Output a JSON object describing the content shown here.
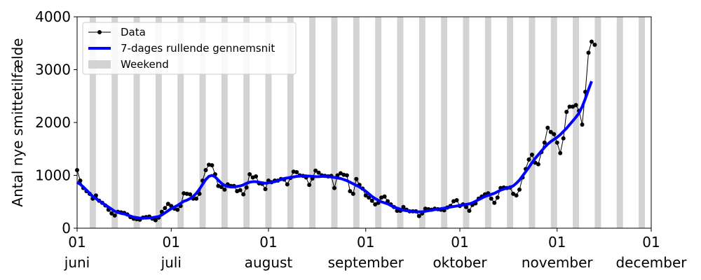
{
  "chart_data": {
    "type": "line",
    "ylabel": "Antal nye smittetilfælde",
    "xlim": [
      "06-01",
      "12-01"
    ],
    "xticks": [
      {
        "value": "06-01",
        "label": "01\njuni"
      },
      {
        "value": "07-01",
        "label": "01\njuli"
      },
      {
        "value": "08-01",
        "label": "01\naugust"
      },
      {
        "value": "09-01",
        "label": "01\nseptember"
      },
      {
        "value": "10-01",
        "label": "01\noktober"
      },
      {
        "value": "11-01",
        "label": "01\nnovember"
      },
      {
        "value": "12-01",
        "label": "01\ndecember"
      }
    ],
    "ylim": [
      0,
      4000
    ],
    "yticks": [
      0,
      1000,
      2000,
      3000,
      4000
    ],
    "legend": "upper left",
    "x": [
      "06-01",
      "06-02",
      "06-03",
      "06-04",
      "06-05",
      "06-06",
      "06-07",
      "06-08",
      "06-09",
      "06-10",
      "06-11",
      "06-12",
      "06-13",
      "06-14",
      "06-15",
      "06-16",
      "06-17",
      "06-18",
      "06-19",
      "06-20",
      "06-21",
      "06-22",
      "06-23",
      "06-24",
      "06-25",
      "06-26",
      "06-27",
      "06-28",
      "06-29",
      "06-30",
      "07-01",
      "07-02",
      "07-03",
      "07-04",
      "07-05",
      "07-06",
      "07-07",
      "07-08",
      "07-09",
      "07-10",
      "07-11",
      "07-12",
      "07-13",
      "07-14",
      "07-15",
      "07-16",
      "07-17",
      "07-18",
      "07-19",
      "07-20",
      "07-21",
      "07-22",
      "07-23",
      "07-24",
      "07-25",
      "07-26",
      "07-27",
      "07-28",
      "07-29",
      "07-30",
      "07-31",
      "08-01",
      "08-02",
      "08-03",
      "08-04",
      "08-05",
      "08-06",
      "08-07",
      "08-08",
      "08-09",
      "08-10",
      "08-11",
      "08-12",
      "08-13",
      "08-14",
      "08-15",
      "08-16",
      "08-17",
      "08-18",
      "08-19",
      "08-20",
      "08-21",
      "08-22",
      "08-23",
      "08-24",
      "08-25",
      "08-26",
      "08-27",
      "08-28",
      "08-29",
      "08-30",
      "08-31",
      "09-01",
      "09-02",
      "09-03",
      "09-04",
      "09-05",
      "09-06",
      "09-07",
      "09-08",
      "09-09",
      "09-10",
      "09-11",
      "09-12",
      "09-13",
      "09-14",
      "09-15",
      "09-16",
      "09-17",
      "09-18",
      "09-19",
      "09-20",
      "09-21",
      "09-22",
      "09-23",
      "09-24",
      "09-25",
      "09-26",
      "09-27",
      "09-28",
      "09-29",
      "09-30",
      "10-01",
      "10-02",
      "10-03",
      "10-04",
      "10-05",
      "10-06",
      "10-07",
      "10-08",
      "10-09",
      "10-10",
      "10-11",
      "10-12",
      "10-13",
      "10-14",
      "10-15",
      "10-16",
      "10-17",
      "10-18",
      "10-19",
      "10-20",
      "10-21",
      "10-22",
      "10-23",
      "10-24",
      "10-25",
      "10-26",
      "10-27",
      "10-28",
      "10-29",
      "10-30",
      "10-31",
      "11-01",
      "11-02",
      "11-03",
      "11-04",
      "11-05",
      "11-06",
      "11-07",
      "11-08",
      "11-09",
      "11-10",
      "11-11",
      "11-12",
      "11-13"
    ],
    "series": [
      {
        "name": "Data",
        "color": "#000000",
        "values": [
          1100,
          900,
          760,
          700,
          650,
          560,
          620,
          520,
          480,
          430,
          350,
          280,
          240,
          310,
          300,
          290,
          260,
          210,
          180,
          170,
          160,
          200,
          210,
          220,
          180,
          150,
          200,
          310,
          380,
          460,
          420,
          370,
          350,
          420,
          660,
          650,
          640,
          560,
          560,
          650,
          900,
          1100,
          1200,
          1190,
          1020,
          800,
          780,
          730,
          830,
          800,
          800,
          700,
          720,
          640,
          770,
          1020,
          960,
          980,
          850,
          840,
          740,
          900,
          870,
          900,
          900,
          930,
          920,
          830,
          950,
          1070,
          1060,
          1000,
          990,
          960,
          820,
          940,
          1090,
          1050,
          1000,
          990,
          980,
          990,
          760,
          1000,
          1040,
          1010,
          1000,
          700,
          650,
          930,
          820,
          750,
          620,
          580,
          520,
          450,
          480,
          580,
          600,
          510,
          450,
          400,
          330,
          330,
          400,
          350,
          320,
          320,
          320,
          230,
          280,
          370,
          360,
          350,
          370,
          360,
          350,
          340,
          390,
          420,
          510,
          530,
          420,
          450,
          400,
          330,
          440,
          470,
          560,
          600,
          640,
          660,
          560,
          480,
          580,
          760,
          770,
          760,
          770,
          650,
          620,
          730,
          960,
          1120,
          1300,
          1390,
          1240,
          1210,
          1440,
          1620,
          1900,
          1820,
          1780,
          1620,
          1420,
          1700,
          2200,
          2300,
          2300,
          2330,
          2220,
          1960,
          2580,
          3320,
          3530,
          3470
        ]
      },
      {
        "name": "7-dages rullende gennemsnit",
        "color": "#0000ff",
        "values": [
          870,
          830,
          780,
          720,
          660,
          600,
          560,
          520,
          480,
          440,
          400,
          360,
          320,
          300,
          280,
          270,
          250,
          230,
          210,
          200,
          190,
          190,
          190,
          195,
          200,
          210,
          220,
          250,
          290,
          330,
          370,
          400,
          430,
          470,
          510,
          530,
          560,
          600,
          660,
          740,
          830,
          920,
          980,
          1000,
          970,
          910,
          850,
          810,
          790,
          780,
          780,
          790,
          800,
          820,
          850,
          870,
          880,
          880,
          870,
          860,
          850,
          860,
          870,
          880,
          900,
          920,
          940,
          950,
          960,
          970,
          980,
          985,
          990,
          990,
          985,
          980,
          975,
          975,
          980,
          980,
          975,
          970,
          960,
          950,
          940,
          920,
          900,
          870,
          840,
          810,
          780,
          740,
          700,
          650,
          600,
          560,
          530,
          500,
          480,
          460,
          430,
          400,
          380,
          360,
          340,
          330,
          320,
          315,
          310,
          310,
          310,
          320,
          330,
          340,
          350,
          360,
          370,
          380,
          390,
          400,
          410,
          420,
          430,
          440,
          450,
          460,
          480,
          510,
          540,
          570,
          600,
          620,
          640,
          660,
          690,
          720,
          740,
          760,
          780,
          800,
          850,
          910,
          990,
          1070,
          1150,
          1240,
          1320,
          1390,
          1460,
          1530,
          1590,
          1640,
          1680,
          1720,
          1770,
          1830,
          1890,
          1960,
          2030,
          2100,
          2180,
          2300,
          2450,
          2620,
          2780,
          null
        ]
      }
    ],
    "weekend": {
      "name": "Weekend",
      "color": "#d3d3d3",
      "spans": [
        [
          "06-05",
          "06-07"
        ],
        [
          "06-12",
          "06-14"
        ],
        [
          "06-19",
          "06-21"
        ],
        [
          "06-26",
          "06-28"
        ],
        [
          "07-03",
          "07-05"
        ],
        [
          "07-10",
          "07-12"
        ],
        [
          "07-17",
          "07-19"
        ],
        [
          "07-24",
          "07-26"
        ],
        [
          "07-31",
          "08-02"
        ],
        [
          "08-07",
          "08-09"
        ],
        [
          "08-14",
          "08-16"
        ],
        [
          "08-21",
          "08-23"
        ],
        [
          "08-28",
          "08-30"
        ],
        [
          "09-04",
          "09-06"
        ],
        [
          "09-11",
          "09-13"
        ],
        [
          "09-18",
          "09-20"
        ],
        [
          "09-25",
          "09-27"
        ],
        [
          "10-02",
          "10-04"
        ],
        [
          "10-09",
          "10-11"
        ],
        [
          "10-16",
          "10-18"
        ],
        [
          "10-23",
          "10-25"
        ],
        [
          "10-30",
          "11-01"
        ],
        [
          "11-06",
          "11-08"
        ],
        [
          "11-13",
          "11-15"
        ],
        [
          "11-20",
          "11-22"
        ],
        [
          "11-27",
          "11-29"
        ]
      ]
    }
  }
}
